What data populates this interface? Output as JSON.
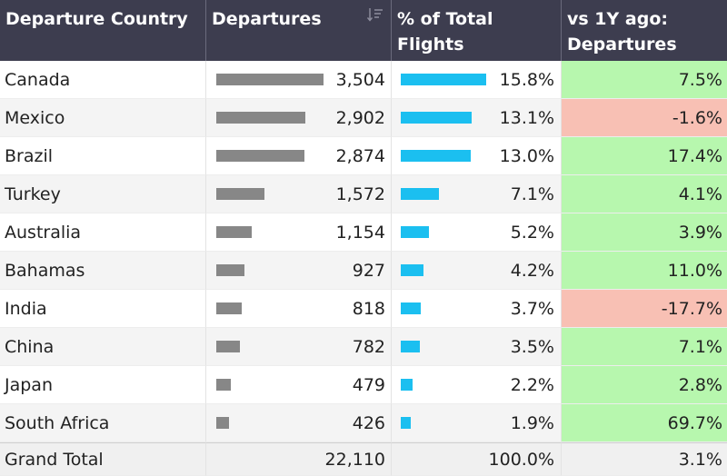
{
  "headers": {
    "country": "Departure Country",
    "departures": "Departures",
    "pct_line1": "% of Total",
    "pct_line2": "Flights",
    "vs_line1": "vs 1Y ago:",
    "vs_line2": "Departures",
    "sort_icon": "sort-icon"
  },
  "colors": {
    "header_bg": "#3d3d4f",
    "dep_bar": "#878787",
    "pct_bar": "#1bbff0",
    "positive": "#b7f7ae",
    "negative": "#f8c0b4"
  },
  "rows": [
    {
      "country": "Canada",
      "departures": "3,504",
      "dep_value": 3504,
      "pct": "15.8%",
      "pct_value": 15.8,
      "delta": "7.5%",
      "delta_sign": "pos"
    },
    {
      "country": "Mexico",
      "departures": "2,902",
      "dep_value": 2902,
      "pct": "13.1%",
      "pct_value": 13.1,
      "delta": "-1.6%",
      "delta_sign": "neg"
    },
    {
      "country": "Brazil",
      "departures": "2,874",
      "dep_value": 2874,
      "pct": "13.0%",
      "pct_value": 13.0,
      "delta": "17.4%",
      "delta_sign": "pos"
    },
    {
      "country": "Turkey",
      "departures": "1,572",
      "dep_value": 1572,
      "pct": "7.1%",
      "pct_value": 7.1,
      "delta": "4.1%",
      "delta_sign": "pos"
    },
    {
      "country": "Australia",
      "departures": "1,154",
      "dep_value": 1154,
      "pct": "5.2%",
      "pct_value": 5.2,
      "delta": "3.9%",
      "delta_sign": "pos"
    },
    {
      "country": "Bahamas",
      "departures": "927",
      "dep_value": 927,
      "pct": "4.2%",
      "pct_value": 4.2,
      "delta": "11.0%",
      "delta_sign": "pos"
    },
    {
      "country": "India",
      "departures": "818",
      "dep_value": 818,
      "pct": "3.7%",
      "pct_value": 3.7,
      "delta": "-17.7%",
      "delta_sign": "neg"
    },
    {
      "country": "China",
      "departures": "782",
      "dep_value": 782,
      "pct": "3.5%",
      "pct_value": 3.5,
      "delta": "7.1%",
      "delta_sign": "pos"
    },
    {
      "country": "Japan",
      "departures": "479",
      "dep_value": 479,
      "pct": "2.2%",
      "pct_value": 2.2,
      "delta": "2.8%",
      "delta_sign": "pos"
    },
    {
      "country": "South Africa",
      "departures": "426",
      "dep_value": 426,
      "pct": "1.9%",
      "pct_value": 1.9,
      "delta": "69.7%",
      "delta_sign": "pos"
    }
  ],
  "total": {
    "label": "Grand Total",
    "departures": "22,110",
    "pct": "100.0%",
    "delta": "3.1%"
  }
}
